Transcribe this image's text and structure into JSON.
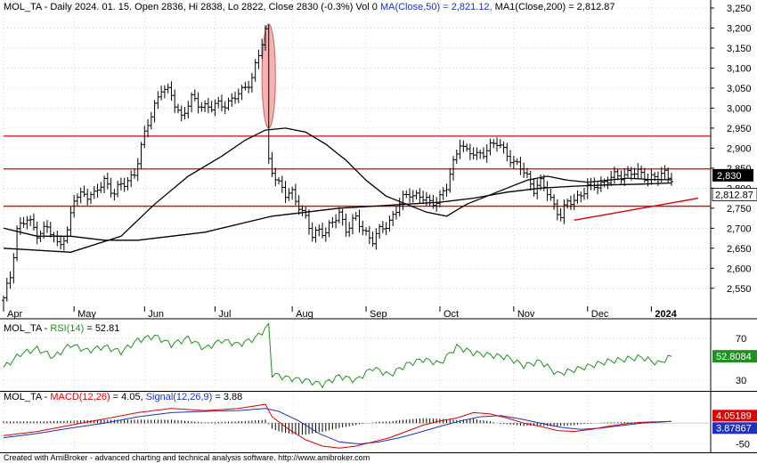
{
  "chart_data": {
    "type": "ohlc",
    "header": {
      "symbol": "MOL_TA",
      "prefix": "MOL_TA - Daily 2024. 01. 15. Open 2836, Hi 2838, Lo 2822, Close 2830 (-0.3%) Vol 0 ",
      "ma50": "MA(Close,50) = 2,821.12,",
      "ma200": " MA1(Close,200) = 2,812.87"
    },
    "price_axis": {
      "ticks": [
        2550,
        2600,
        2650,
        2700,
        2750,
        2800,
        2850,
        2900,
        2950,
        3000,
        3050,
        3100,
        3150,
        3200,
        3250
      ],
      "tick_labels": [
        "2,550",
        "2,600",
        "2,650",
        "2,700",
        "2,750",
        "2,800",
        "2,850",
        "2,900",
        "2,950",
        "3,000",
        "3,050",
        "3,100",
        "3,150",
        "3,200",
        "3,250"
      ],
      "range": [
        2505,
        3270
      ],
      "last_close_label": "2,830",
      "ma200_label": "2,812.87"
    },
    "months": [
      "Apr",
      "May",
      "Jun",
      "Jul",
      "Aug",
      "Sep",
      "Oct",
      "Nov",
      "Dec",
      "2024"
    ],
    "trading_days": 200,
    "month_start_days": [
      0,
      21,
      42,
      63,
      86,
      108,
      130,
      152,
      174,
      193
    ],
    "horizontal_lines": [
      2930,
      2848,
      2755
    ],
    "trendline": {
      "from": [
        170,
        2720
      ],
      "to": [
        199,
        2775
      ]
    },
    "ellipse": {
      "center": [
        79,
        3080
      ],
      "half_width_days": 2,
      "half_height": 130
    },
    "price_path": [
      [
        0,
        2520
      ],
      [
        2,
        2580
      ],
      [
        4,
        2700
      ],
      [
        7,
        2720
      ],
      [
        10,
        2690
      ],
      [
        13,
        2700
      ],
      [
        16,
        2660
      ],
      [
        19,
        2690
      ],
      [
        21,
        2770
      ],
      [
        24,
        2790
      ],
      [
        27,
        2780
      ],
      [
        30,
        2820
      ],
      [
        33,
        2790
      ],
      [
        36,
        2810
      ],
      [
        39,
        2840
      ],
      [
        41,
        2900
      ],
      [
        43,
        2960
      ],
      [
        45,
        3010
      ],
      [
        47,
        3050
      ],
      [
        50,
        3030
      ],
      [
        53,
        2980
      ],
      [
        56,
        3020
      ],
      [
        59,
        3010
      ],
      [
        62,
        3000
      ],
      [
        65,
        3010
      ],
      [
        68,
        3020
      ],
      [
        71,
        3040
      ],
      [
        74,
        3080
      ],
      [
        76,
        3130
      ],
      [
        78,
        3190
      ],
      [
        79,
        2870
      ],
      [
        80,
        2850
      ],
      [
        82,
        2810
      ],
      [
        84,
        2780
      ],
      [
        86,
        2790
      ],
      [
        88,
        2760
      ],
      [
        90,
        2720
      ],
      [
        92,
        2680
      ],
      [
        94,
        2700
      ],
      [
        96,
        2690
      ],
      [
        98,
        2710
      ],
      [
        100,
        2740
      ],
      [
        102,
        2700
      ],
      [
        105,
        2720
      ],
      [
        108,
        2690
      ],
      [
        110,
        2670
      ],
      [
        112,
        2690
      ],
      [
        115,
        2720
      ],
      [
        118,
        2760
      ],
      [
        121,
        2790
      ],
      [
        124,
        2780
      ],
      [
        127,
        2760
      ],
      [
        130,
        2780
      ],
      [
        132,
        2800
      ],
      [
        134,
        2860
      ],
      [
        136,
        2920
      ],
      [
        138,
        2890
      ],
      [
        141,
        2880
      ],
      [
        144,
        2900
      ],
      [
        147,
        2910
      ],
      [
        150,
        2890
      ],
      [
        152,
        2860
      ],
      [
        154,
        2850
      ],
      [
        156,
        2830
      ],
      [
        158,
        2800
      ],
      [
        160,
        2810
      ],
      [
        162,
        2790
      ],
      [
        164,
        2760
      ],
      [
        166,
        2730
      ],
      [
        168,
        2760
      ],
      [
        171,
        2780
      ],
      [
        174,
        2800
      ],
      [
        177,
        2810
      ],
      [
        180,
        2820
      ],
      [
        183,
        2830
      ],
      [
        186,
        2840
      ],
      [
        189,
        2835
      ],
      [
        192,
        2830
      ],
      [
        195,
        2825
      ],
      [
        197,
        2835
      ],
      [
        199,
        2830
      ]
    ],
    "ma50_path": [
      [
        0,
        2650
      ],
      [
        20,
        2640
      ],
      [
        35,
        2680
      ],
      [
        45,
        2760
      ],
      [
        55,
        2830
      ],
      [
        65,
        2880
      ],
      [
        72,
        2920
      ],
      [
        78,
        2945
      ],
      [
        84,
        2950
      ],
      [
        90,
        2940
      ],
      [
        96,
        2910
      ],
      [
        102,
        2870
      ],
      [
        108,
        2820
      ],
      [
        114,
        2780
      ],
      [
        120,
        2760
      ],
      [
        126,
        2740
      ],
      [
        132,
        2730
      ],
      [
        138,
        2760
      ],
      [
        144,
        2780
      ],
      [
        150,
        2800
      ],
      [
        156,
        2820
      ],
      [
        162,
        2830
      ],
      [
        168,
        2820
      ],
      [
        174,
        2815
      ],
      [
        180,
        2820
      ],
      [
        186,
        2825
      ],
      [
        192,
        2822
      ],
      [
        199,
        2821
      ]
    ],
    "ma200_path": [
      [
        0,
        2700
      ],
      [
        10,
        2680
      ],
      [
        20,
        2680
      ],
      [
        30,
        2670
      ],
      [
        40,
        2670
      ],
      [
        50,
        2680
      ],
      [
        60,
        2690
      ],
      [
        70,
        2710
      ],
      [
        80,
        2730
      ],
      [
        90,
        2740
      ],
      [
        100,
        2750
      ],
      [
        110,
        2755
      ],
      [
        120,
        2760
      ],
      [
        130,
        2765
      ],
      [
        140,
        2775
      ],
      [
        150,
        2790
      ],
      [
        160,
        2800
      ],
      [
        170,
        2805
      ],
      [
        180,
        2808
      ],
      [
        190,
        2810
      ],
      [
        199,
        2813
      ]
    ],
    "rsi": {
      "label_prefix": "MOL_TA - ",
      "label_name": "RSI(14)",
      "label_value": " = 52.81",
      "value_box": "52.8084",
      "ticks": [
        30,
        70
      ],
      "range": [
        20,
        85
      ],
      "path": [
        [
          0,
          42
        ],
        [
          5,
          55
        ],
        [
          10,
          60
        ],
        [
          15,
          52
        ],
        [
          20,
          64
        ],
        [
          25,
          58
        ],
        [
          30,
          62
        ],
        [
          35,
          57
        ],
        [
          40,
          68
        ],
        [
          45,
          72
        ],
        [
          50,
          64
        ],
        [
          55,
          70
        ],
        [
          60,
          60
        ],
        [
          65,
          68
        ],
        [
          70,
          64
        ],
        [
          75,
          70
        ],
        [
          79,
          82
        ],
        [
          80,
          36
        ],
        [
          85,
          32
        ],
        [
          90,
          30
        ],
        [
          95,
          26
        ],
        [
          100,
          34
        ],
        [
          105,
          30
        ],
        [
          110,
          42
        ],
        [
          115,
          35
        ],
        [
          120,
          45
        ],
        [
          125,
          50
        ],
        [
          130,
          46
        ],
        [
          135,
          62
        ],
        [
          140,
          56
        ],
        [
          145,
          54
        ],
        [
          150,
          52
        ],
        [
          155,
          44
        ],
        [
          160,
          48
        ],
        [
          165,
          36
        ],
        [
          170,
          40
        ],
        [
          175,
          44
        ],
        [
          180,
          48
        ],
        [
          185,
          50
        ],
        [
          190,
          52
        ],
        [
          195,
          46
        ],
        [
          199,
          52.8
        ]
      ]
    },
    "macd": {
      "label_prefix": "MOL_TA - ",
      "label_macd": "MACD(12,26)",
      "label_macd_value": " = 4.05, ",
      "label_signal": "Signal(12,26,9)",
      "label_signal_value": " = 3.88",
      "macd_box": "4.05189",
      "signal_box": "3.87867",
      "tick": -50,
      "range": [
        -70,
        75
      ],
      "macd_path": [
        [
          0,
          -30
        ],
        [
          10,
          -20
        ],
        [
          20,
          -5
        ],
        [
          30,
          10
        ],
        [
          40,
          25
        ],
        [
          50,
          35
        ],
        [
          60,
          30
        ],
        [
          70,
          35
        ],
        [
          78,
          45
        ],
        [
          80,
          15
        ],
        [
          85,
          -15
        ],
        [
          90,
          -40
        ],
        [
          95,
          -55
        ],
        [
          100,
          -60
        ],
        [
          105,
          -55
        ],
        [
          110,
          -45
        ],
        [
          115,
          -35
        ],
        [
          120,
          -20
        ],
        [
          125,
          -5
        ],
        [
          130,
          5
        ],
        [
          135,
          12
        ],
        [
          140,
          25
        ],
        [
          145,
          22
        ],
        [
          150,
          12
        ],
        [
          155,
          0
        ],
        [
          160,
          -8
        ],
        [
          165,
          -18
        ],
        [
          170,
          -20
        ],
        [
          175,
          -15
        ],
        [
          180,
          -8
        ],
        [
          185,
          -2
        ],
        [
          190,
          2
        ],
        [
          199,
          4
        ]
      ],
      "signal_path": [
        [
          0,
          -35
        ],
        [
          10,
          -25
        ],
        [
          20,
          -12
        ],
        [
          30,
          0
        ],
        [
          40,
          15
        ],
        [
          50,
          25
        ],
        [
          60,
          28
        ],
        [
          70,
          30
        ],
        [
          78,
          35
        ],
        [
          82,
          28
        ],
        [
          88,
          5
        ],
        [
          94,
          -25
        ],
        [
          100,
          -45
        ],
        [
          106,
          -50
        ],
        [
          112,
          -45
        ],
        [
          118,
          -35
        ],
        [
          124,
          -22
        ],
        [
          130,
          -8
        ],
        [
          136,
          5
        ],
        [
          142,
          15
        ],
        [
          148,
          18
        ],
        [
          154,
          10
        ],
        [
          160,
          0
        ],
        [
          166,
          -10
        ],
        [
          172,
          -15
        ],
        [
          178,
          -12
        ],
        [
          184,
          -6
        ],
        [
          190,
          0
        ],
        [
          199,
          3.9
        ]
      ]
    },
    "colors": {
      "price": "#000000",
      "ma50": "#000000",
      "ma200": "#000000",
      "hline": "#e00000",
      "trend": "#e00000",
      "ellipse_fill": "#f5b3b3",
      "ellipse_stroke": "#d06060",
      "rsi": "#209020",
      "macd": "#e00000",
      "signal": "#2030c0",
      "grid": "#b8b8b8"
    }
  },
  "footer": "Created with AmiBroker - advanced charting and technical analysis software. http://www.amibroker.com"
}
